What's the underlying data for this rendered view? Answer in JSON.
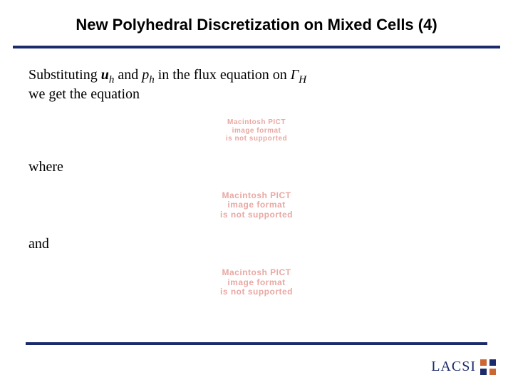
{
  "title": "New Polyhedral Discretization on Mixed Cells (4)",
  "title_fontsize": 22,
  "rule_color": "#1b2a6b",
  "body_fontsize": 20,
  "intro": {
    "pre": "Substituting ",
    "u": "u",
    "u_sub": "h",
    "and1": " and ",
    "p": "p",
    "p_sub": "h",
    "mid": " in the flux equation on ",
    "gamma": "Γ",
    "gamma_sub": "H",
    "line2": "we get the equation"
  },
  "where": "where",
  "and": "and",
  "pict": {
    "line1": "Macintosh PICT",
    "line2": "image format",
    "line3": "is not supported",
    "color": "#e9a8a3",
    "fontsize_large": 12,
    "fontsize_small": 10
  },
  "logo": {
    "text": "LACSI",
    "text_color": "#1b2a6b",
    "fontsize": 20,
    "mark_colors": {
      "tl": "#c63",
      "tr": "#1b2a6b",
      "bl": "#1b2a6b",
      "br": "#c63"
    }
  }
}
